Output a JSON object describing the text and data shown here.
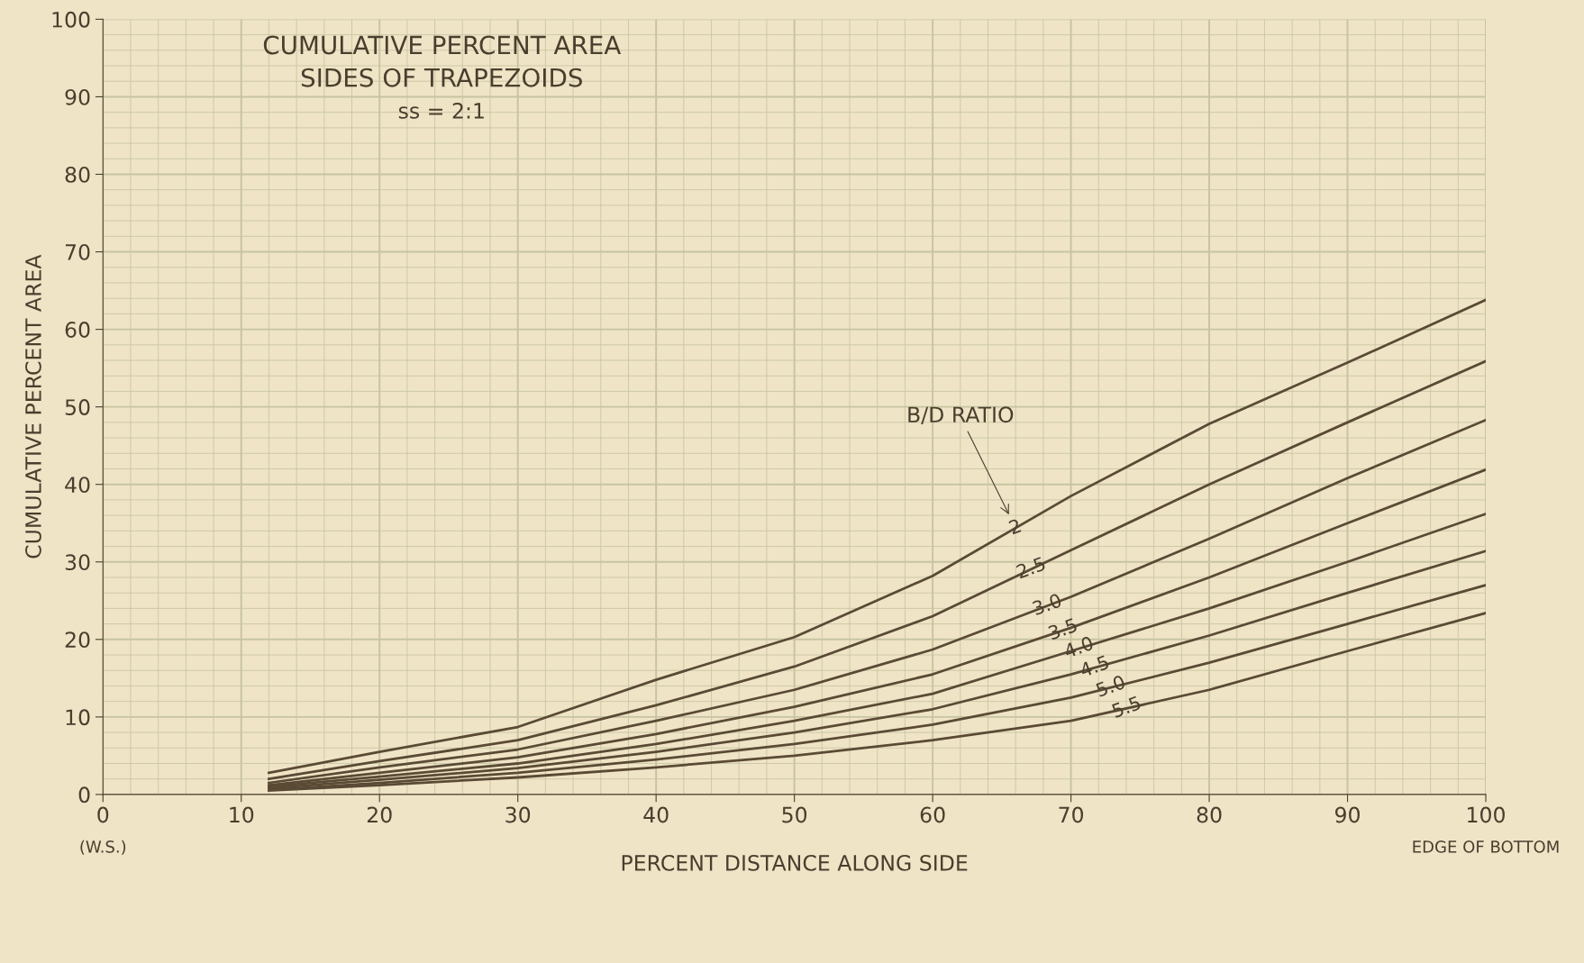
{
  "chart_data": {
    "type": "line",
    "title": "CUMULATIVE PERCENT AREA",
    "subtitle": "SIDES OF TRAPEZOIDS",
    "xlabel": "PERCENT DISTANCE ALONG SIDE",
    "ylabel": "CUMULATIVE PERCENT AREA",
    "x": [
      12,
      20,
      30,
      40,
      50,
      60,
      70,
      80,
      90,
      100
    ],
    "series": [
      {
        "name": "2",
        "color": "#5a4a35",
        "values": [
          2.8,
          5.5,
          8.7,
          14.8,
          20.3,
          28.2,
          38.5,
          47.8,
          55.7,
          63.8
        ]
      },
      {
        "name": "2.5",
        "color": "#5a4a35",
        "values": [
          2.0,
          4.3,
          7.0,
          11.5,
          16.5,
          23,
          31.5,
          40,
          48,
          55.9
        ]
      },
      {
        "name": "3.0",
        "color": "#5a4a35",
        "values": [
          1.5,
          3.5,
          5.8,
          9.5,
          13.5,
          18.7,
          25.5,
          33,
          40.8,
          48.3
        ]
      },
      {
        "name": "3.5",
        "color": "#5a4a35",
        "values": [
          1.2,
          2.8,
          4.8,
          7.8,
          11.3,
          15.5,
          21.5,
          28,
          35,
          41.9
        ]
      },
      {
        "name": "4.0",
        "color": "#5a4a35",
        "values": [
          1.0,
          2.3,
          4,
          6.5,
          9.5,
          13,
          18.5,
          24,
          30,
          36.2
        ]
      },
      {
        "name": "4.5",
        "color": "#5a4a35",
        "values": [
          0.8,
          1.9,
          3.4,
          5.5,
          8,
          11,
          15.5,
          20.5,
          26,
          31.4
        ]
      },
      {
        "name": "5.0",
        "color": "#5a4a35",
        "values": [
          0.6,
          1.5,
          2.8,
          4.5,
          6.5,
          9,
          12.5,
          17,
          22,
          27
        ]
      },
      {
        "name": "5.5",
        "color": "#5a4a35",
        "values": [
          0.5,
          1.2,
          2.2,
          3.5,
          5,
          7,
          9.5,
          13.5,
          18.5,
          23.4
        ]
      }
    ],
    "xlim": [
      0,
      100
    ],
    "ylim": [
      0,
      100
    ],
    "xticks": [
      0,
      10,
      20,
      30,
      40,
      50,
      60,
      70,
      80,
      90,
      100
    ],
    "yticks": [
      0,
      10,
      20,
      30,
      40,
      50,
      60,
      70,
      80,
      90,
      100
    ],
    "grid": true,
    "marker": "none",
    "line_style": "solid",
    "legend": "right",
    "annotations": [
      "ss = 2:1",
      "B/D RATIO",
      "(W.S.)",
      "EDGE OF BOTTOM"
    ]
  }
}
